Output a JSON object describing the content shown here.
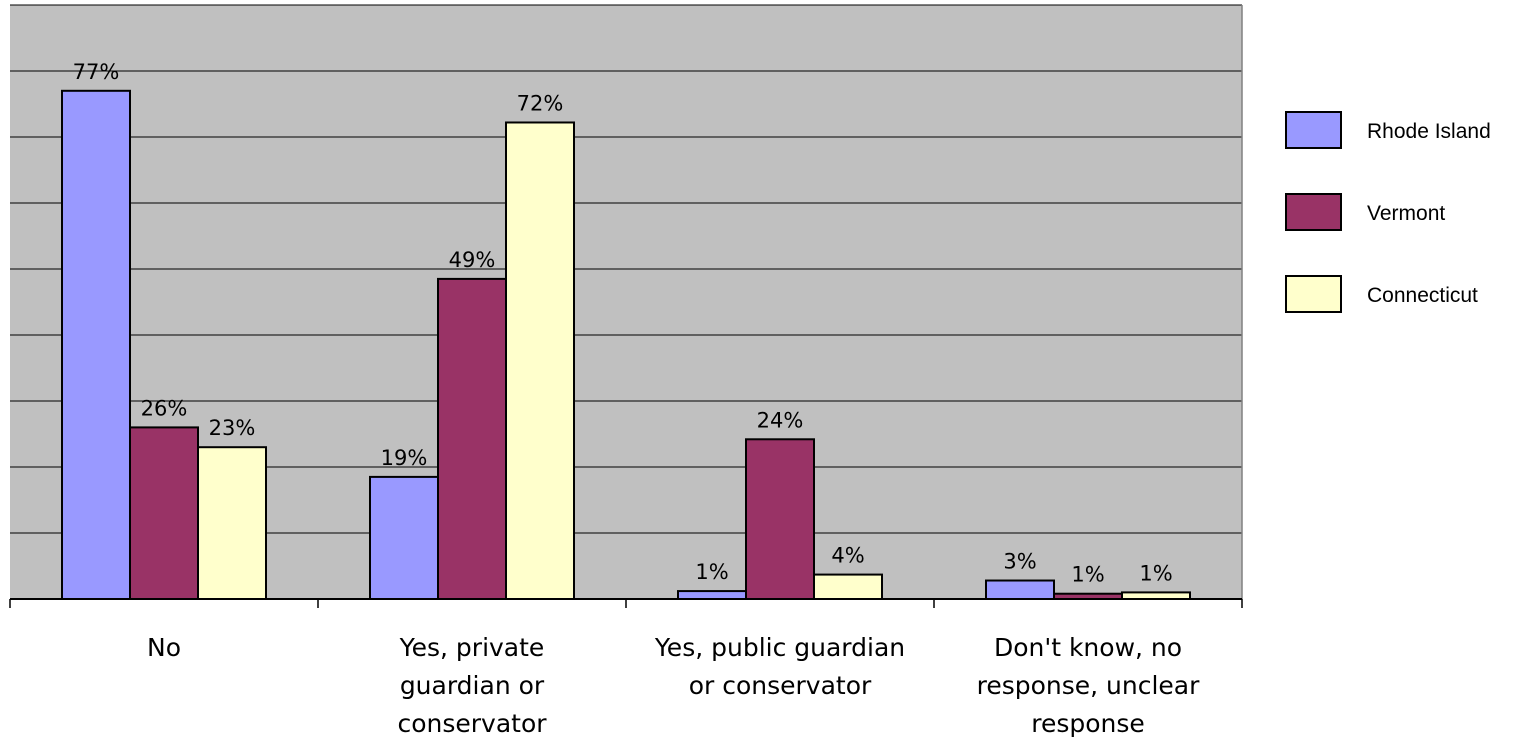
{
  "chart_data": {
    "type": "bar",
    "title": "",
    "xlabel": "",
    "ylabel": "",
    "ylim": [
      0,
      90
    ],
    "grid": true,
    "legend_position": "right",
    "categories": [
      [
        "No"
      ],
      [
        "Yes, private",
        "guardian or",
        "conservator"
      ],
      [
        "Yes, public guardian",
        "or conservator"
      ],
      [
        "Don't know, no",
        "response, unclear",
        "response"
      ]
    ],
    "series": [
      {
        "name": "Rhode Island",
        "color": "#9999ff",
        "values": [
          77,
          18.5,
          1.2,
          2.8
        ],
        "labels": [
          "77%",
          "19%",
          "1%",
          "3%"
        ]
      },
      {
        "name": "Vermont",
        "color": "#993366",
        "values": [
          26,
          48.5,
          24.2,
          0.8
        ],
        "labels": [
          "26%",
          "49%",
          "24%",
          "1%"
        ]
      },
      {
        "name": "Connecticut",
        "color": "#ffffcc",
        "values": [
          23,
          72.2,
          3.7,
          1.0
        ],
        "labels": [
          "23%",
          "72%",
          "4%",
          "1%"
        ]
      }
    ],
    "plot_background": "#c0c0c0"
  }
}
